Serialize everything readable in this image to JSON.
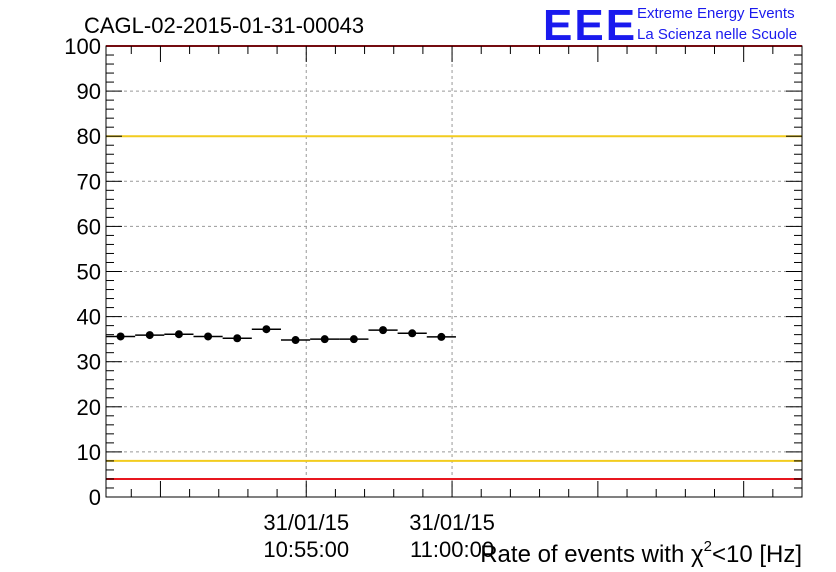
{
  "header": {
    "title": "CAGL-02-2015-01-31-00043",
    "logo_mark": "EEE",
    "logo_line1": "Extreme Energy Events",
    "logo_line2": "La Scienza nelle Scuole"
  },
  "colors": {
    "logo": "#1a1aee",
    "red_line": "#e8171f",
    "yellow_line": "#f2cc1f",
    "grid": "#999999",
    "data": "#000000"
  },
  "chart_data": {
    "type": "scatter",
    "title": "CAGL-02-2015-01-31-00043",
    "ylabel": "",
    "xlabel_parts": [
      "Rate of events with ",
      "χ",
      "2",
      "<10 [Hz]"
    ],
    "ylim": [
      0,
      100
    ],
    "yticks": [
      0,
      10,
      20,
      30,
      40,
      50,
      60,
      70,
      80,
      90,
      100
    ],
    "xlim_seconds_rel": [
      -412,
      1020
    ],
    "x_tick_labels": [
      {
        "date": "31/01/15",
        "time": "10:55:00",
        "t": 0
      },
      {
        "date": "31/01/15",
        "time": "11:00:00",
        "t": 300
      }
    ],
    "reference_lines": [
      {
        "y": 100,
        "color": "red"
      },
      {
        "y": 80,
        "color": "yellow"
      },
      {
        "y": 8,
        "color": "yellow"
      },
      {
        "y": 4,
        "color": "red"
      }
    ],
    "series": [
      {
        "points": [
          {
            "x0": -412,
            "x1": -352,
            "y": 35.6
          },
          {
            "x0": -352,
            "x1": -292,
            "y": 35.9
          },
          {
            "x0": -292,
            "x1": -232,
            "y": 36.1
          },
          {
            "x0": -232,
            "x1": -172,
            "y": 35.6
          },
          {
            "x0": -172,
            "x1": -112,
            "y": 35.2
          },
          {
            "x0": -112,
            "x1": -52,
            "y": 37.2
          },
          {
            "x0": -52,
            "x1": 8,
            "y": 34.8
          },
          {
            "x0": 8,
            "x1": 68,
            "y": 35.0
          },
          {
            "x0": 68,
            "x1": 128,
            "y": 35.0
          },
          {
            "x0": 128,
            "x1": 188,
            "y": 37.0
          },
          {
            "x0": 188,
            "x1": 248,
            "y": 36.3
          },
          {
            "x0": 248,
            "x1": 308,
            "y": 35.5
          }
        ]
      }
    ]
  }
}
